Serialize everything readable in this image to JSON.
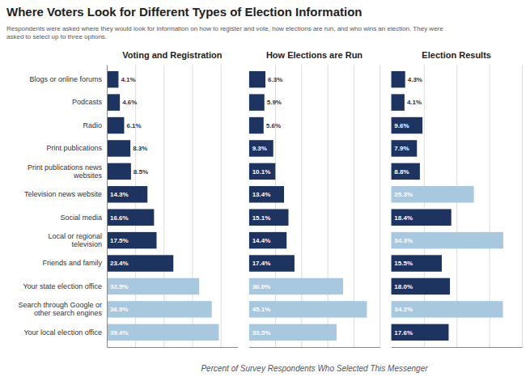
{
  "title": "Where Voters Look for Different Types of Election Information",
  "subtitle": "Respondents were asked where they would look for information on how to register and vote, how elections are run, and who wins an election. They were\nasked to select up to three options.",
  "xlabel": "Percent of Survey Respondents Who Selected This Messenger",
  "chart_data": [
    {
      "type": "bar",
      "orientation": "horizontal",
      "title": "Voting and Registration",
      "categories": [
        "Blogs or online forums",
        "Podcasts",
        "Radio",
        "Print publications",
        "Print publications news\nwebsites",
        "Television news website",
        "Social media",
        "Local or regional\ntelevision",
        "Friends and family",
        "Your state election office",
        "Search through Google or\nother search engines",
        "Your local election office"
      ],
      "values": [
        4.1,
        4.6,
        6.1,
        8.3,
        8.5,
        14.3,
        16.6,
        17.5,
        23.4,
        32.5,
        36.9,
        39.4
      ],
      "value_labels": [
        "4.1%",
        "4.6%",
        "6.1%",
        "8.3%",
        "8.5%",
        "14.3%",
        "16.6%",
        "17.5%",
        "23.4%",
        "32.5%",
        "36.9%",
        "39.4%"
      ],
      "colors": [
        "#1d3461",
        "#1d3461",
        "#1d3461",
        "#1d3461",
        "#1d3461",
        "#1d3461",
        "#1d3461",
        "#1d3461",
        "#1d3461",
        "#a8c8e0",
        "#a8c8e0",
        "#a8c8e0"
      ],
      "xlim": [
        0,
        46
      ],
      "xticks": [
        10,
        20,
        30,
        40
      ],
      "grid": true,
      "data_labels": true,
      "tick_labels": "y"
    },
    {
      "type": "bar",
      "orientation": "horizontal",
      "title": "How Elections are Run",
      "categories": [
        "Blogs or online forums",
        "Podcasts",
        "Radio",
        "Print publications",
        "Print publications news\nwebsites",
        "Television news website",
        "Social media",
        "Local or regional\ntelevision",
        "Friends and family",
        "Your state election office",
        "Search through Google or\nother search engines",
        "Your local election office"
      ],
      "values": [
        6.3,
        5.9,
        5.6,
        9.3,
        10.1,
        13.4,
        15.1,
        14.4,
        17.4,
        36.0,
        45.1,
        33.5
      ],
      "value_labels": [
        "6.3%",
        "5.9%",
        "5.6%",
        "9.3%",
        "10.1%",
        "13.4%",
        "15.1%",
        "14.4%",
        "17.4%",
        "36.0%",
        "45.1%",
        "33.5%"
      ],
      "colors": [
        "#1d3461",
        "#1d3461",
        "#1d3461",
        "#1d3461",
        "#1d3461",
        "#1d3461",
        "#1d3461",
        "#1d3461",
        "#1d3461",
        "#a8c8e0",
        "#a8c8e0",
        "#a8c8e0"
      ],
      "xlim": [
        0,
        50
      ],
      "xticks": [
        10,
        20,
        30,
        40,
        50
      ],
      "grid": true,
      "data_labels": true,
      "tick_labels": false
    },
    {
      "type": "bar",
      "orientation": "horizontal",
      "title": "Election Results",
      "categories": [
        "Blogs or online forums",
        "Podcasts",
        "Radio",
        "Print publications",
        "Print publications news\nwebsites",
        "Television news website",
        "Social media",
        "Local or regional\ntelevision",
        "Friends and family",
        "Your state election office",
        "Search through Google or\nother search engines",
        "Your local election office"
      ],
      "values": [
        4.3,
        4.1,
        9.6,
        7.9,
        8.8,
        25.3,
        18.4,
        34.3,
        15.5,
        18.0,
        34.2,
        17.6
      ],
      "value_labels": [
        "4.3%",
        "4.1%",
        "9.6%",
        "7.9%",
        "8.8%",
        "25.3%",
        "18.4%",
        "34.3%",
        "15.5%",
        "18.0%",
        "34.2%",
        "17.6%"
      ],
      "colors": [
        "#1d3461",
        "#1d3461",
        "#1d3461",
        "#1d3461",
        "#1d3461",
        "#a8c8e0",
        "#1d3461",
        "#a8c8e0",
        "#1d3461",
        "#1d3461",
        "#a8c8e0",
        "#1d3461"
      ],
      "xlim": [
        0,
        40
      ],
      "xticks": [
        10,
        20,
        30,
        40
      ],
      "grid": true,
      "data_labels": true,
      "tick_labels": false
    }
  ]
}
